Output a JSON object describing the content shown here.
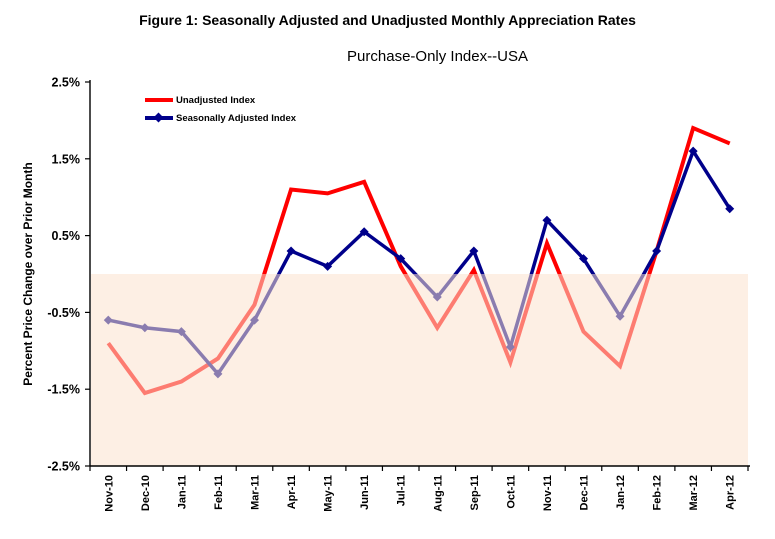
{
  "figure": {
    "title": "Figure 1: Seasonally Adjusted and Unadjusted Monthly Appreciation Rates",
    "subtitle": "Purchase-Only Index--USA"
  },
  "chart_data": {
    "type": "line",
    "title": "Purchase-Only Index--USA",
    "xlabel": "",
    "ylabel": "Percent Price Change over Prior Month",
    "ylim": [
      -2.5,
      2.5
    ],
    "yticks": {
      "values": [
        2.5,
        1.5,
        0.5,
        -0.5,
        -1.5,
        -2.5
      ],
      "labels": [
        "2.5%",
        "1.5%",
        "0.5%",
        "-0.5%",
        "-1.5%",
        "-2.5%"
      ]
    },
    "categories": [
      "Nov-10",
      "Dec-10",
      "Jan-11",
      "Feb-11",
      "Mar-11",
      "Apr-11",
      "May-11",
      "Jun-11",
      "Jul-11",
      "Aug-11",
      "Sep-11",
      "Oct-11",
      "Nov-11",
      "Dec-11",
      "Jan-12",
      "Feb-12",
      "Mar-12",
      "Apr-12"
    ],
    "series": [
      {
        "name": "Unadjusted Index",
        "color": "#FF0000",
        "marker": "none",
        "values": [
          -0.9,
          -1.55,
          -1.4,
          -1.1,
          -0.4,
          1.1,
          1.05,
          1.2,
          0.1,
          -0.7,
          0.05,
          -1.15,
          0.4,
          -0.75,
          -1.2,
          0.3,
          1.9,
          1.7
        ]
      },
      {
        "name": "Seasonally Adjusted Index",
        "color": "#00008B",
        "marker": "diamond",
        "values": [
          -0.6,
          -0.7,
          -0.75,
          -1.3,
          -0.6,
          0.3,
          0.1,
          0.55,
          0.2,
          -0.3,
          0.3,
          -0.95,
          0.7,
          0.2,
          -0.55,
          0.3,
          1.6,
          0.85
        ]
      }
    ],
    "legend_position": "top-left-inside",
    "grid": false,
    "negative_region_overlay_color": "rgba(251,226,205,0.55)",
    "axis_color": "#000000"
  }
}
